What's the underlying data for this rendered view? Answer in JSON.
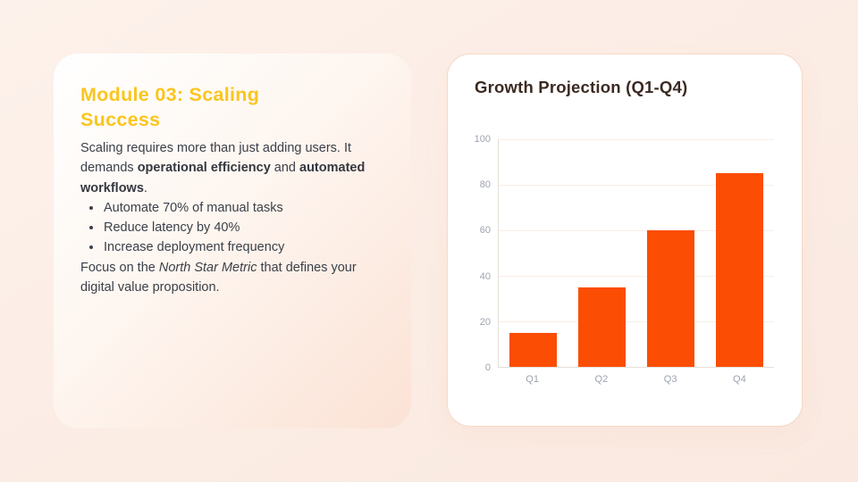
{
  "left_card": {
    "title": "Module 03: Scaling Success",
    "title_color": "#FBC51D",
    "intro": {
      "pre": "Scaling requires more than just adding users. It demands ",
      "bold1": "operational efficiency",
      "mid": " and ",
      "bold2": "automated workflows",
      "post": "."
    },
    "bullets": [
      "Automate 70% of manual tasks",
      "Reduce latency by 40%",
      "Increase deployment frequency"
    ],
    "outro": {
      "pre": "Focus on the ",
      "italic": "North Star Metric",
      "post": " that defines your digital value proposition."
    }
  },
  "right_card": {
    "chart_title": "Growth Projection (Q1-Q4)"
  },
  "chart_data": {
    "type": "bar",
    "title": "Growth Projection (Q1-Q4)",
    "categories": [
      "Q1",
      "Q2",
      "Q3",
      "Q4"
    ],
    "values": [
      15,
      35,
      60,
      85
    ],
    "xlabel": "",
    "ylabel": "",
    "ylim": [
      0,
      100
    ],
    "yticks": [
      0,
      20,
      40,
      60,
      80,
      100
    ],
    "grid": true,
    "legend": false,
    "bar_color": "#FB4D03",
    "axis_label_color": "#9CA3AF",
    "gridline_color": "#F9EEE7"
  }
}
